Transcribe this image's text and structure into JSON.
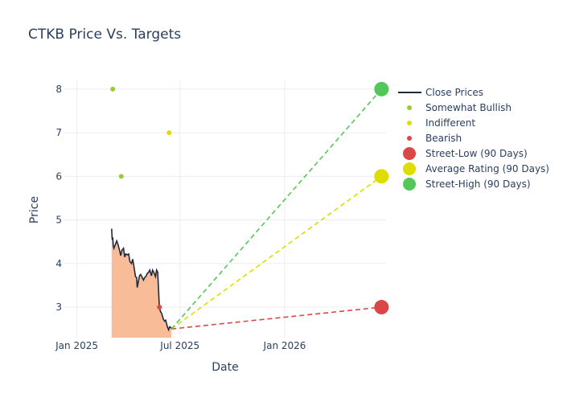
{
  "chart_data": {
    "type": "line",
    "title": "CTKB Price Vs. Targets",
    "xlabel": "Date",
    "ylabel": "Price",
    "grid": true,
    "legend_position": "right",
    "xlim": [
      "2024-12-10",
      "2026-06-28"
    ],
    "ylim": [
      2.3,
      8.2
    ],
    "x_ticks": [
      {
        "date": "2025-01-01",
        "label": "Jan 2025"
      },
      {
        "date": "2025-07-01",
        "label": "Jul 2025"
      },
      {
        "date": "2026-01-01",
        "label": "Jan 2026"
      }
    ],
    "y_ticks": [
      3,
      4,
      5,
      6,
      7,
      8
    ],
    "series": [
      {
        "name": "Close Prices",
        "kind": "line",
        "color": "#1f2a3c",
        "fill_color": "#f9bc98",
        "points": [
          [
            "2025-03-03",
            4.8
          ],
          [
            "2025-03-04",
            4.55
          ],
          [
            "2025-03-05",
            4.6
          ],
          [
            "2025-03-06",
            4.4
          ],
          [
            "2025-03-07",
            4.35
          ],
          [
            "2025-03-10",
            4.45
          ],
          [
            "2025-03-12",
            4.52
          ],
          [
            "2025-03-14",
            4.45
          ],
          [
            "2025-03-17",
            4.3
          ],
          [
            "2025-03-19",
            4.18
          ],
          [
            "2025-03-21",
            4.3
          ],
          [
            "2025-03-24",
            4.35
          ],
          [
            "2025-03-26",
            4.15
          ],
          [
            "2025-03-28",
            4.22
          ],
          [
            "2025-03-31",
            4.2
          ],
          [
            "2025-04-02",
            4.22
          ],
          [
            "2025-04-04",
            4.05
          ],
          [
            "2025-04-07",
            4.0
          ],
          [
            "2025-04-09",
            4.1
          ],
          [
            "2025-04-11",
            3.95
          ],
          [
            "2025-04-14",
            3.7
          ],
          [
            "2025-04-16",
            3.68
          ],
          [
            "2025-04-17",
            3.45
          ],
          [
            "2025-04-21",
            3.72
          ],
          [
            "2025-04-23",
            3.75
          ],
          [
            "2025-04-25",
            3.7
          ],
          [
            "2025-04-28",
            3.62
          ],
          [
            "2025-04-30",
            3.68
          ],
          [
            "2025-05-02",
            3.7
          ],
          [
            "2025-05-05",
            3.78
          ],
          [
            "2025-05-07",
            3.8
          ],
          [
            "2025-05-09",
            3.85
          ],
          [
            "2025-05-12",
            3.72
          ],
          [
            "2025-05-14",
            3.85
          ],
          [
            "2025-05-16",
            3.8
          ],
          [
            "2025-05-19",
            3.7
          ],
          [
            "2025-05-21",
            3.85
          ],
          [
            "2025-05-23",
            3.8
          ],
          [
            "2025-05-26",
            2.98
          ],
          [
            "2025-05-28",
            2.9
          ],
          [
            "2025-05-30",
            2.85
          ],
          [
            "2025-06-02",
            2.72
          ],
          [
            "2025-06-04",
            2.68
          ],
          [
            "2025-06-06",
            2.7
          ],
          [
            "2025-06-09",
            2.55
          ],
          [
            "2025-06-11",
            2.48
          ],
          [
            "2025-06-13",
            2.55
          ],
          [
            "2025-06-16",
            2.52
          ]
        ]
      },
      {
        "name": "Somewhat Bullish",
        "kind": "marker",
        "color": "#9acd32",
        "points": [
          [
            "2025-03-05",
            8.0
          ],
          [
            "2025-03-20",
            6.0
          ]
        ]
      },
      {
        "name": "Indifferent",
        "kind": "marker",
        "color": "#dddd00",
        "points": [
          [
            "2025-06-12",
            7.0
          ]
        ]
      },
      {
        "name": "Bearish",
        "kind": "marker",
        "color": "#d94747",
        "points": [
          [
            "2025-05-26",
            3.0
          ]
        ]
      },
      {
        "name": "Street-Low (90 Days)",
        "kind": "target",
        "color": "#d94747",
        "from": [
          "2025-06-16",
          2.5
        ],
        "to": [
          "2026-06-20",
          3.0
        ]
      },
      {
        "name": "Average Rating (90 Days)",
        "kind": "target",
        "color": "#dddd00",
        "from": [
          "2025-06-16",
          2.5
        ],
        "to": [
          "2026-06-20",
          6.0
        ]
      },
      {
        "name": "Street-High (90 Days)",
        "kind": "target",
        "color": "#53c75a",
        "from": [
          "2025-06-16",
          2.5
        ],
        "to": [
          "2026-06-20",
          8.0
        ]
      }
    ]
  }
}
